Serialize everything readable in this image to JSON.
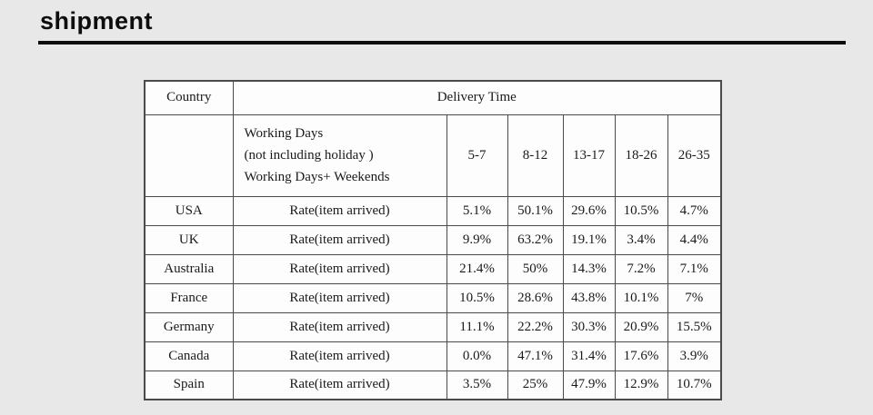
{
  "page": {
    "title": "shipment",
    "background_color": "#e8e8e8",
    "table_background_color": "#fdfdfd",
    "border_color": "#4a4a4a"
  },
  "table": {
    "header": {
      "country": "Country",
      "delivery_time": "Delivery Time",
      "working_days_lines": [
        "Working Days",
        "(not including holiday )",
        "Working Days+ Weekends"
      ],
      "ranges": [
        "5-7",
        "8-12",
        "13-17",
        "18-26",
        "26-35"
      ]
    },
    "rows": [
      {
        "country": "USA",
        "label": "Rate(item arrived)",
        "values": [
          "5.1%",
          "50.1%",
          "29.6%",
          "10.5%",
          "4.7%"
        ]
      },
      {
        "country": "UK",
        "label": "Rate(item arrived)",
        "values": [
          "9.9%",
          "63.2%",
          "19.1%",
          "3.4%",
          "4.4%"
        ]
      },
      {
        "country": "Australia",
        "label": "Rate(item arrived)",
        "values": [
          "21.4%",
          "50%",
          "14.3%",
          "7.2%",
          "7.1%"
        ]
      },
      {
        "country": "France",
        "label": "Rate(item arrived)",
        "values": [
          "10.5%",
          "28.6%",
          "43.8%",
          "10.1%",
          "7%"
        ]
      },
      {
        "country": "Germany",
        "label": "Rate(item arrived)",
        "values": [
          "11.1%",
          "22.2%",
          "30.3%",
          "20.9%",
          "15.5%"
        ]
      },
      {
        "country": "Canada",
        "label": "Rate(item arrived)",
        "values": [
          "0.0%",
          "47.1%",
          "31.4%",
          "17.6%",
          "3.9%"
        ]
      },
      {
        "country": "Spain",
        "label": "Rate(item arrived)",
        "values": [
          "3.5%",
          "25%",
          "47.9%",
          "12.9%",
          "10.7%"
        ]
      }
    ]
  }
}
